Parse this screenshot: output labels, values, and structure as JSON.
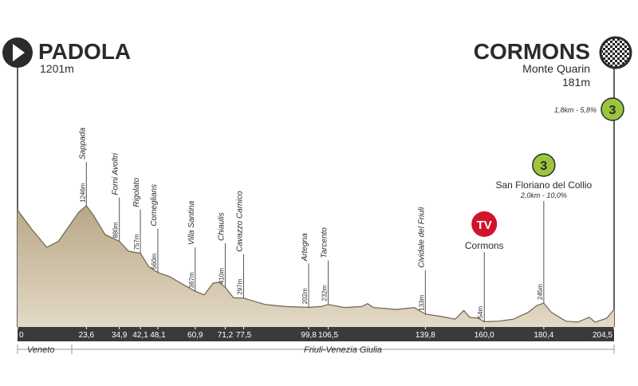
{
  "chart_data": {
    "type": "area",
    "start": {
      "name": "PADOLA",
      "altitude": "1201m"
    },
    "finish": {
      "name": "CORMONS",
      "place": "Monte Quarin",
      "altitude": "181m"
    },
    "x": [
      0,
      5,
      10,
      14,
      18,
      21,
      23.6,
      26,
      30,
      34.9,
      38,
      42.1,
      45,
      48.1,
      52,
      56,
      60.9,
      64,
      67,
      69,
      71.2,
      74,
      77.5,
      85,
      92,
      99.8,
      104,
      106.5,
      112,
      118,
      120,
      122,
      130,
      136,
      139.8,
      145,
      150,
      153,
      155,
      158,
      160,
      165,
      170,
      175,
      178,
      180.4,
      183,
      188,
      192,
      196,
      198,
      202,
      204.5
    ],
    "values": [
      1201,
      1000,
      820,
      880,
      1050,
      1180,
      1246,
      1150,
      950,
      880,
      780,
      757,
      620,
      560,
      520,
      450,
      367,
      330,
      450,
      460,
      410,
      300,
      297,
      230,
      210,
      202,
      210,
      232,
      200,
      210,
      240,
      200,
      180,
      200,
      133,
      110,
      80,
      170,
      100,
      90,
      54,
      60,
      80,
      150,
      220,
      245,
      150,
      60,
      50,
      100,
      50,
      90,
      181
    ],
    "value_labels": [
      null,
      null,
      null,
      null,
      null,
      null,
      "1246m",
      null,
      null,
      "880m",
      null,
      "757m",
      null,
      "560m",
      null,
      null,
      "367m",
      null,
      null,
      null,
      "410m",
      null,
      "297m",
      null,
      null,
      "202m",
      null,
      "232m",
      null,
      null,
      null,
      null,
      null,
      null,
      "133m",
      null,
      null,
      null,
      null,
      null,
      "54m",
      null,
      null,
      null,
      null,
      "245m",
      null,
      null,
      null,
      null,
      null,
      null,
      null
    ],
    "point_names": [
      null,
      null,
      null,
      null,
      null,
      null,
      "Sappada",
      null,
      null,
      "Forni Avoltri",
      null,
      "Rigolato",
      null,
      "Comeglians",
      null,
      null,
      "Villa Santina",
      null,
      null,
      null,
      "Chiaulis",
      null,
      "Cavazzo Carnico",
      null,
      null,
      "Artegna",
      null,
      "Tarcento",
      null,
      null,
      null,
      null,
      null,
      null,
      "Cividale del Friuli",
      null,
      null,
      null,
      null,
      null,
      null,
      null,
      null,
      null,
      null,
      null,
      null,
      null,
      null,
      null,
      null,
      null,
      null
    ],
    "xlim": [
      0,
      204.5
    ],
    "ylim": [
      0,
      1500
    ],
    "xticks": [
      0,
      {
        "value": 23.6,
        "label": "23,6"
      },
      {
        "value": 34.9,
        "label": "34,9"
      },
      {
        "value": 42.1,
        "label": "42,1"
      },
      {
        "value": 48.1,
        "label": "48,1"
      },
      {
        "value": 60.9,
        "label": "60,9"
      },
      {
        "value": 71.2,
        "label": "71,2"
      },
      {
        "value": 77.5,
        "label": "77,5"
      },
      {
        "value": 99.8,
        "label": "99,8"
      },
      {
        "value": 106.5,
        "label": "106,5"
      },
      {
        "value": 139.8,
        "label": "139,8"
      },
      {
        "value": 160.0,
        "label": "160,0"
      },
      {
        "value": 180.4,
        "label": "180,4"
      },
      {
        "value": 204.5,
        "label": "204,5"
      }
    ],
    "color": "#c8b89a",
    "tv": {
      "symbol": "TV",
      "name": "Cormons",
      "x": 160.0
    },
    "climbs": [
      {
        "category": 3,
        "name": "San Floriano del Collio",
        "detail": "2,0km - 10,0%",
        "x": 180.4
      },
      {
        "category": 3,
        "detail": "1,8km - 5,8%",
        "x": 204.5
      }
    ],
    "regions": [
      "Veneto",
      "Friuli-Venezia Giulia"
    ]
  }
}
